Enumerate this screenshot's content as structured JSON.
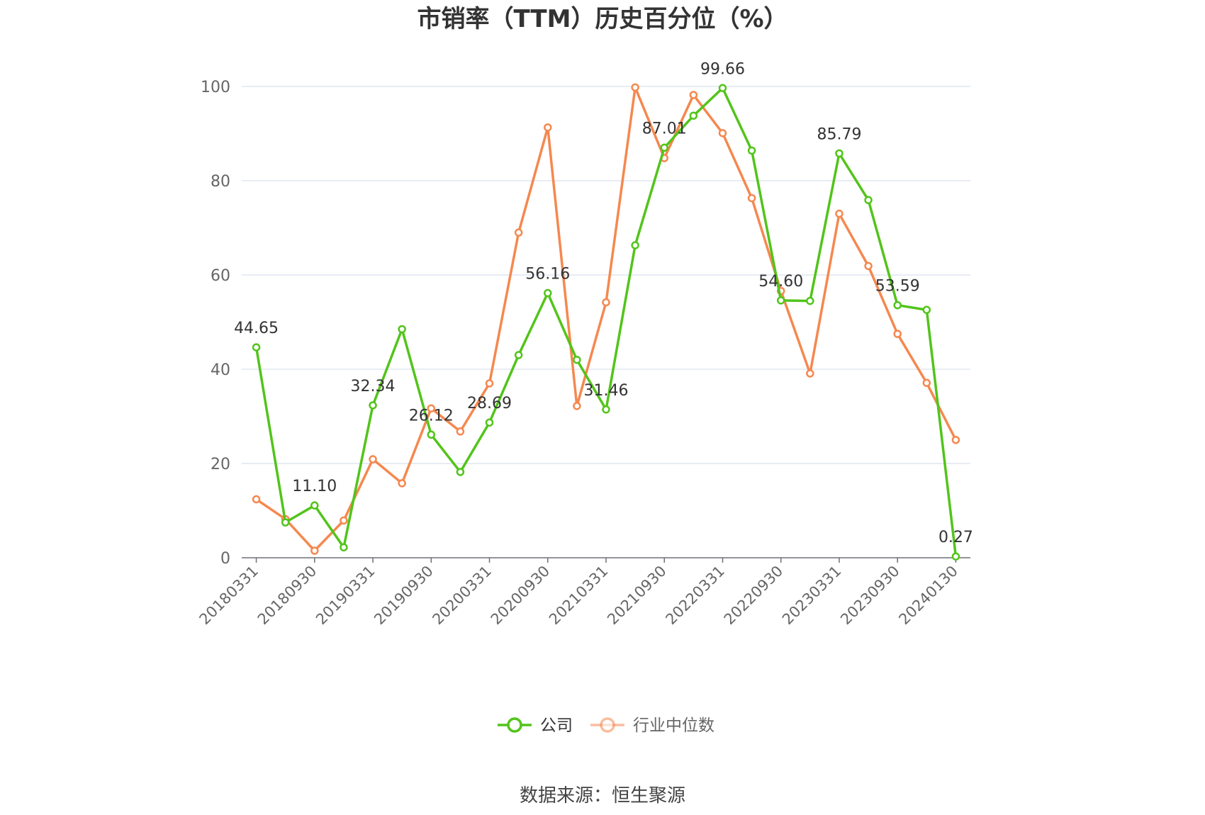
{
  "chart_data": {
    "type": "line",
    "title": "市销率（TTM）历史百分位（%）",
    "xlabel": "",
    "ylabel": "",
    "ylim": [
      0,
      100
    ],
    "yticks": [
      0,
      20,
      40,
      60,
      80,
      100
    ],
    "grid": true,
    "legend_position": "bottom",
    "x": [
      "20180331",
      "20180630",
      "20180930",
      "20181231",
      "20190331",
      "20190630",
      "20190930",
      "20191231",
      "20200331",
      "20200630",
      "20200930",
      "20201231",
      "20210331",
      "20210630",
      "20210930",
      "20211231",
      "20220331",
      "20220630",
      "20220930",
      "20221231",
      "20230331",
      "20230630",
      "20230930",
      "20231231",
      "20240130"
    ],
    "xtick_labels": [
      "20180331",
      "20180930",
      "20190331",
      "20190930",
      "20200331",
      "20200930",
      "20210331",
      "20210930",
      "20220331",
      "20220930",
      "20230331",
      "20230930",
      "20240130"
    ],
    "series": [
      {
        "name": "公司",
        "color": "#52c41a",
        "values": [
          44.65,
          7.5,
          11.1,
          2.2,
          32.34,
          48.5,
          26.12,
          18.2,
          28.69,
          43.0,
          56.16,
          42.0,
          31.46,
          66.3,
          87.01,
          93.8,
          99.66,
          86.4,
          54.6,
          54.5,
          85.79,
          75.9,
          53.59,
          52.6,
          0.27
        ],
        "labels": [
          "44.65",
          "",
          "11.10",
          "",
          "32.34",
          "",
          "26.12",
          "",
          "28.69",
          "",
          "56.16",
          "",
          "31.46",
          "",
          "87.01",
          "",
          "99.66",
          "",
          "54.60",
          "",
          "85.79",
          "",
          "53.59",
          "",
          "0.27"
        ]
      },
      {
        "name": "行业中位数",
        "color": "#f5884f",
        "values": [
          12.4,
          8.2,
          1.5,
          7.9,
          20.9,
          15.8,
          31.7,
          26.8,
          37.0,
          69.0,
          91.3,
          32.2,
          54.2,
          99.8,
          84.8,
          98.2,
          90.1,
          76.3,
          56.6,
          39.1,
          73.0,
          61.9,
          47.5,
          37.1,
          25.0
        ]
      }
    ]
  },
  "footer": {
    "source": "数据来源：恒生聚源"
  }
}
